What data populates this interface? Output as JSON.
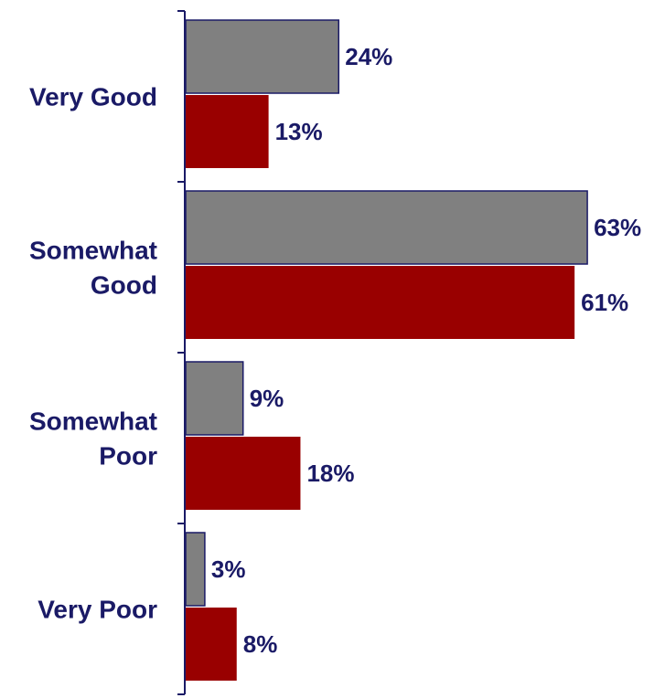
{
  "chart_data": {
    "type": "bar",
    "orientation": "horizontal",
    "categories": [
      [
        "Very Good"
      ],
      [
        "Somewhat",
        "Good"
      ],
      [
        "Somewhat",
        "Poor"
      ],
      [
        "Very Poor"
      ]
    ],
    "series": [
      {
        "values": [
          24,
          63,
          9,
          3
        ],
        "color": "#808080"
      },
      {
        "values": [
          13,
          61,
          18,
          8
        ],
        "color": "#990000"
      }
    ],
    "value_labels": [
      [
        "24%",
        "63%",
        "9%",
        "3%"
      ],
      [
        "13%",
        "61%",
        "18%",
        "8%"
      ]
    ],
    "xlim": [
      0,
      66
    ],
    "legend": "none",
    "grid": false,
    "label_color": "#1a1a66",
    "axis_color": "#1a1a66"
  }
}
